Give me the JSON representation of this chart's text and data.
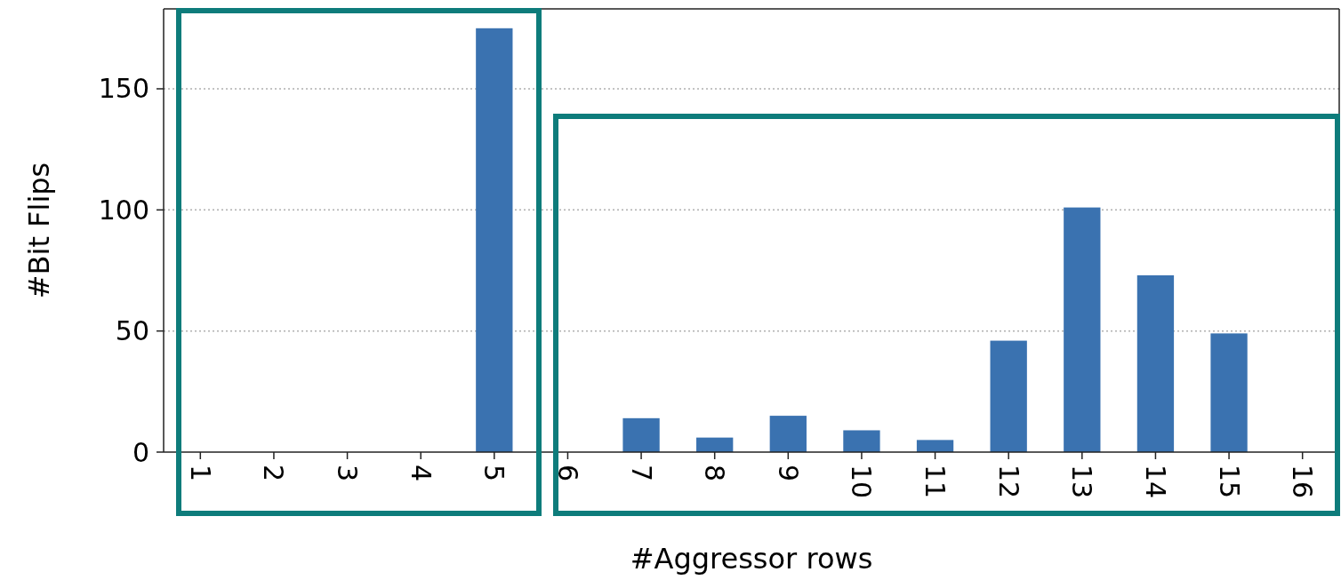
{
  "chart_data": {
    "type": "bar",
    "xlabel": "#Aggressor rows",
    "ylabel": "#Bit Flips",
    "categories": [
      "1",
      "2",
      "3",
      "4",
      "5",
      "6",
      "7",
      "8",
      "9",
      "10",
      "11",
      "12",
      "13",
      "14",
      "15",
      "16"
    ],
    "values": [
      0,
      0,
      0,
      0,
      175,
      0,
      14,
      6,
      15,
      9,
      5,
      46,
      101,
      73,
      49,
      0
    ],
    "color": "#3a72b0",
    "ylim": [
      0,
      183
    ],
    "yticks": [
      0,
      50,
      100,
      150
    ],
    "grid": "y"
  }
}
